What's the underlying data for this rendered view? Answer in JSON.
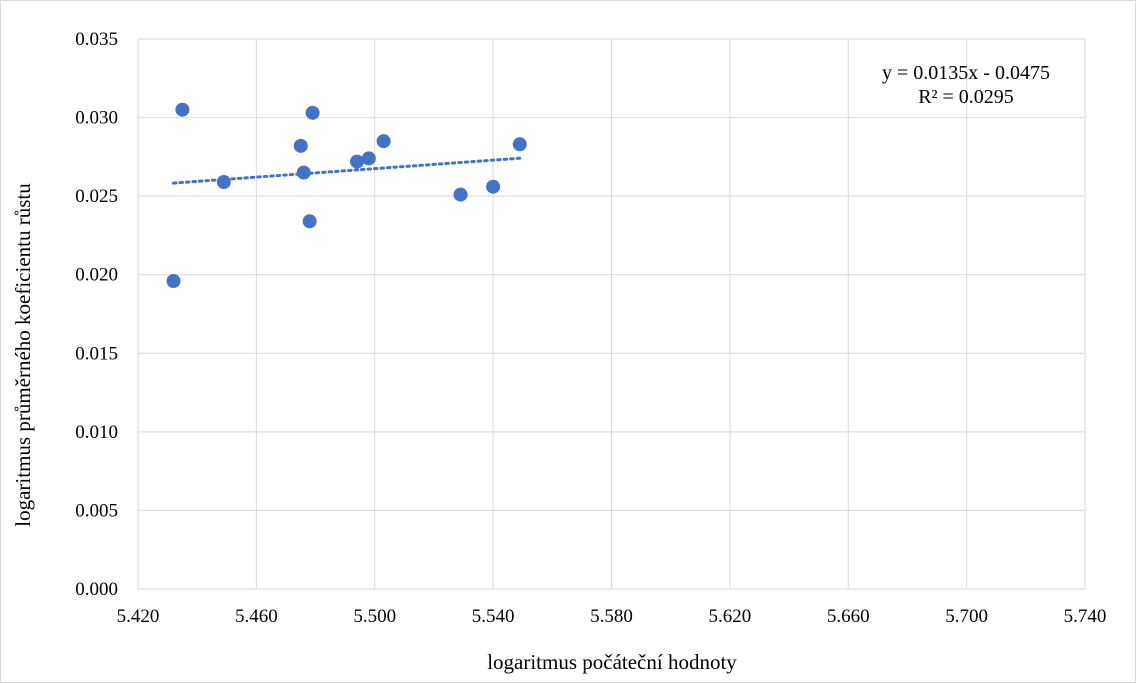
{
  "chart_data": {
    "type": "scatter",
    "xlabel": "logaritmus počáteční hodnoty",
    "ylabel": "logaritmus průměrného koeficientu růstu",
    "xlim": [
      5.42,
      5.74
    ],
    "ylim": [
      0.0,
      0.035
    ],
    "x_ticks": [
      "5.420",
      "5.460",
      "5.500",
      "5.540",
      "5.580",
      "5.620",
      "5.660",
      "5.700",
      "5.740"
    ],
    "y_ticks": [
      "0.000",
      "0.005",
      "0.010",
      "0.015",
      "0.020",
      "0.025",
      "0.030",
      "0.035"
    ],
    "grid": true,
    "marker_color": "#4472c4",
    "trend_color": "#4472c4",
    "series": [
      {
        "points": [
          {
            "x": 5.432,
            "y": 0.0196
          },
          {
            "x": 5.435,
            "y": 0.0305
          },
          {
            "x": 5.449,
            "y": 0.0259
          },
          {
            "x": 5.475,
            "y": 0.0282
          },
          {
            "x": 5.476,
            "y": 0.0265
          },
          {
            "x": 5.478,
            "y": 0.0234
          },
          {
            "x": 5.479,
            "y": 0.0303
          },
          {
            "x": 5.494,
            "y": 0.0272
          },
          {
            "x": 5.498,
            "y": 0.0274
          },
          {
            "x": 5.503,
            "y": 0.0285
          },
          {
            "x": 5.529,
            "y": 0.0251
          },
          {
            "x": 5.54,
            "y": 0.0256
          },
          {
            "x": 5.549,
            "y": 0.0283
          }
        ]
      }
    ],
    "trendline": {
      "type": "linear",
      "style": "dotted",
      "x_range": [
        5.432,
        5.549
      ],
      "equation": "y = 0.0135x - 0.0475",
      "r_squared": "R² = 0.0295"
    }
  }
}
